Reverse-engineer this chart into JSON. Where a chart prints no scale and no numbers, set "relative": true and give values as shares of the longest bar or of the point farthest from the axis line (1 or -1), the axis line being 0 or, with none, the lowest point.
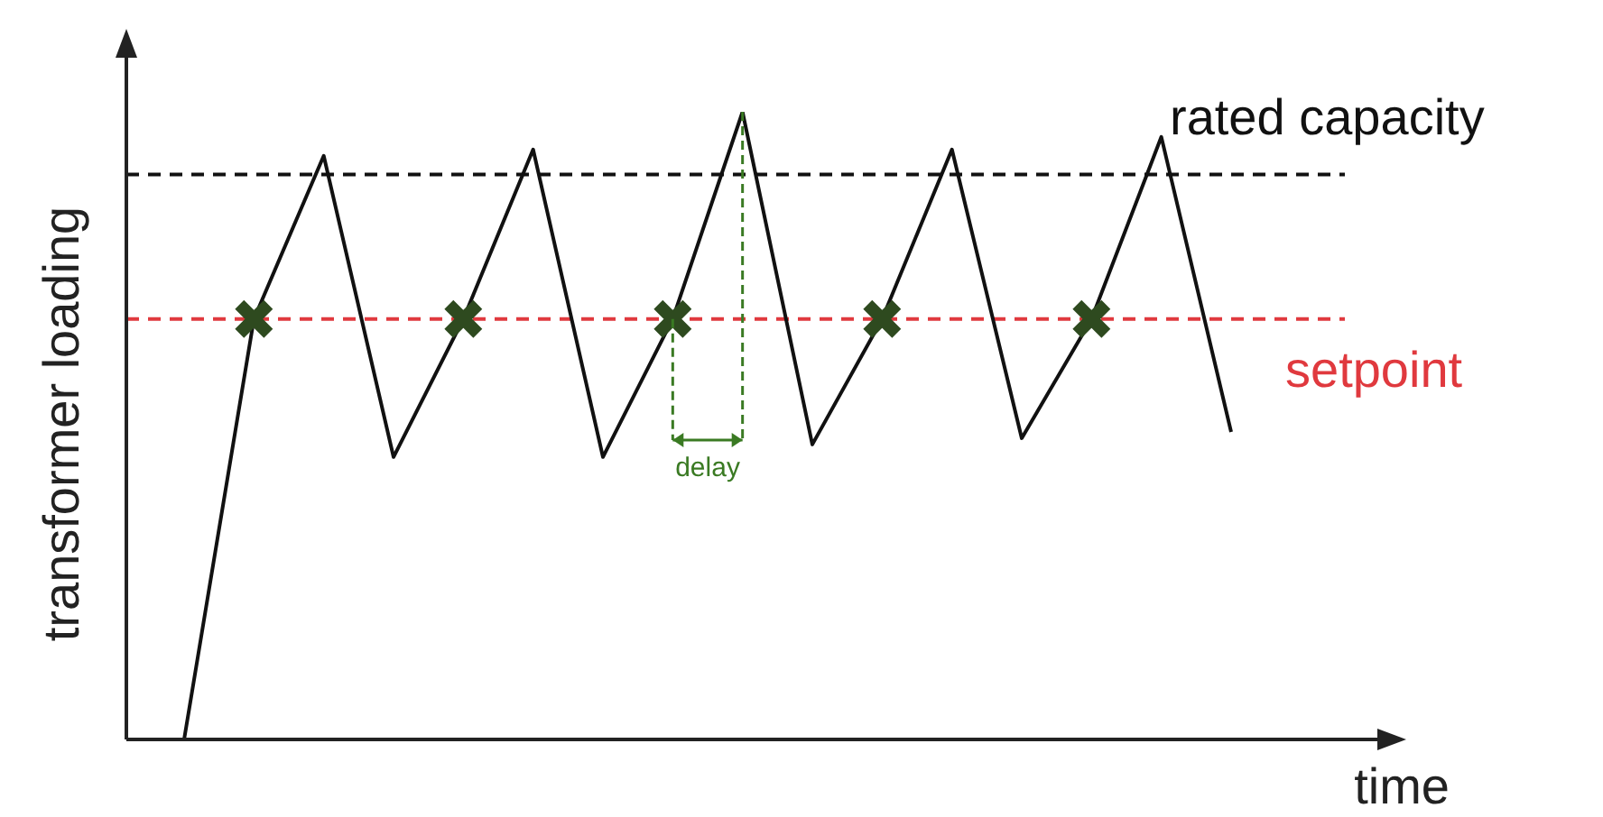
{
  "chart_data": {
    "type": "line",
    "relative": true,
    "xlabel": "time",
    "ylabel": "transformer loading",
    "legend": false,
    "categories": [
      null,
      null,
      null,
      null,
      null,
      null,
      null,
      null,
      null,
      null,
      null,
      null,
      null,
      null,
      null,
      null
    ],
    "series": [
      {
        "type": "line",
        "color": "#111111",
        "line_style": "solid",
        "values": [
          0,
          0.67,
          0.93,
          0.45,
          0.67,
          0.94,
          0.45,
          0.67,
          1,
          0.47,
          0.67,
          0.94,
          0.48,
          0.67,
          0.96,
          0.49
        ]
      }
    ],
    "ref_lines": [
      {
        "axis": "y",
        "value": 0.9,
        "label": "rated capacity",
        "color": "#111111",
        "line_style": "dashed"
      },
      {
        "axis": "y",
        "value": 0.67,
        "label": "setpoint",
        "color": "#e0393e",
        "line_style": "dashed"
      }
    ],
    "annotations": [
      "delay"
    ]
  }
}
